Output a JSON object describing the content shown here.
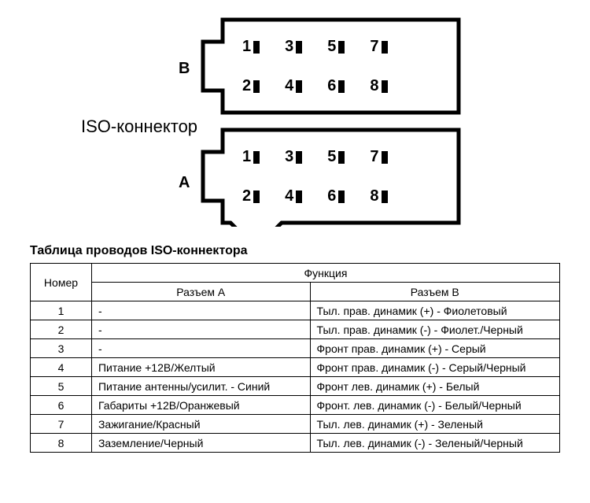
{
  "diagram": {
    "label_iso": "ISO-коннектор",
    "label_b": "B",
    "label_a": "A",
    "connector_stroke": "#000000",
    "connector_stroke_width": 5,
    "pin_numbers_top": [
      "1",
      "3",
      "5",
      "7"
    ],
    "pin_numbers_bottom": [
      "2",
      "4",
      "6",
      "8"
    ],
    "pin_fontsize": 20,
    "pin_box_color": "#000000"
  },
  "table": {
    "title": "Таблица проводов ISO-коннектора",
    "header_num": "Номер",
    "header_func": "Функция",
    "header_a": "Разъем A",
    "header_b": "Разъем B",
    "rows": [
      {
        "n": "1",
        "a": "-",
        "b": "Тыл. прав. динамик (+) - Фиолетовый"
      },
      {
        "n": "2",
        "a": "-",
        "b": "Тыл. прав. динамик (-) - Фиолет./Черный"
      },
      {
        "n": "3",
        "a": "-",
        "b": "Фронт прав. динамик (+) - Серый"
      },
      {
        "n": "4",
        "a": "Питание +12В/Желтый",
        "b": "Фронт прав. динамик (-) - Серый/Черный"
      },
      {
        "n": "5",
        "a": "Питание антенны/усилит. - Синий",
        "b": "Фронт лев. динамик (+) - Белый"
      },
      {
        "n": "6",
        "a": "Габариты +12В/Оранжевый",
        "b": "Фронт. лев. динамик (-) - Белый/Черный"
      },
      {
        "n": "7",
        "a": "Зажигание/Красный",
        "b": "Тыл. лев. динамик (+) - Зеленый"
      },
      {
        "n": "8",
        "a": "Заземление/Черный",
        "b": "Тыл. лев. динамик (-) - Зеленый/Черный"
      }
    ],
    "border_color": "#000000",
    "font_size": 14
  }
}
